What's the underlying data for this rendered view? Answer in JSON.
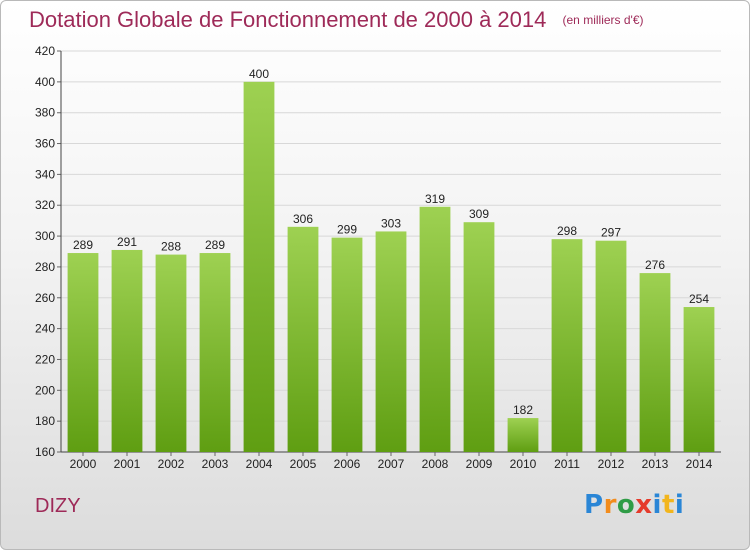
{
  "title": "Dotation Globale de Fonctionnement de 2000 à 2014",
  "unit_note": "(en milliers d'€)",
  "commune": "DIZY",
  "logo": [
    "P",
    "r",
    "o",
    "x",
    "i",
    "t",
    "i"
  ],
  "colors": {
    "title": "#9e2a58",
    "bar_top": "#9ed152",
    "bar_bottom": "#5f9e12",
    "grid": "#d8d8d8"
  },
  "chart_data": {
    "type": "bar",
    "categories": [
      "2000",
      "2001",
      "2002",
      "2003",
      "2004",
      "2005",
      "2006",
      "2007",
      "2008",
      "2009",
      "2010",
      "2011",
      "2012",
      "2013",
      "2014"
    ],
    "values": [
      289,
      291,
      288,
      289,
      400,
      306,
      299,
      303,
      319,
      309,
      182,
      298,
      297,
      276,
      254
    ],
    "title": "Dotation Globale de Fonctionnement de 2000 à 2014",
    "xlabel": "",
    "ylabel": "",
    "ylim": [
      160,
      420
    ],
    "yticks": [
      160,
      180,
      200,
      220,
      240,
      260,
      280,
      300,
      320,
      340,
      360,
      380,
      400,
      420
    ],
    "grid": true,
    "data_labels": true
  }
}
